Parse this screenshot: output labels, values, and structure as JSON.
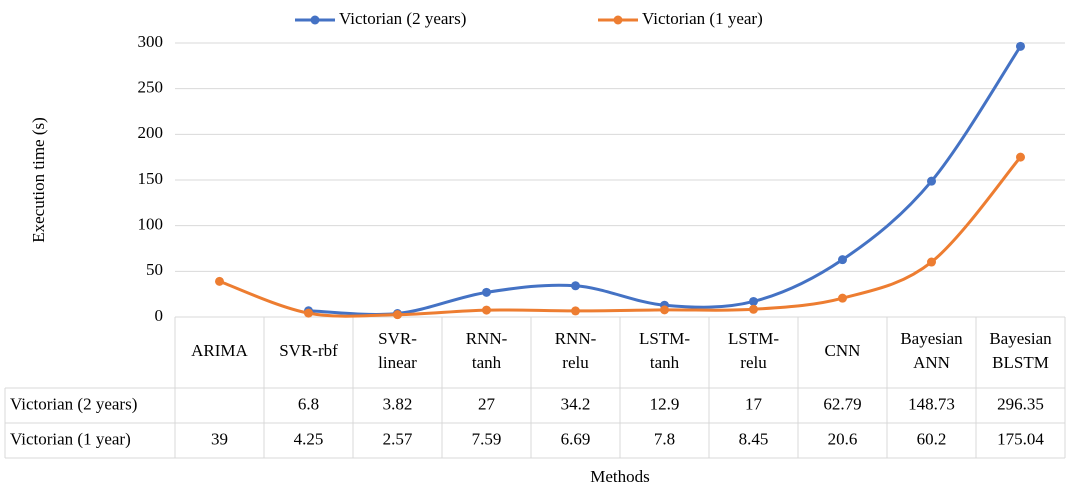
{
  "chart_data": {
    "type": "line",
    "categories": [
      "ARIMA",
      "SVR-rbf",
      "SVR-linear",
      "RNN-tanh",
      "RNN-relu",
      "LSTM-tanh",
      "LSTM-relu",
      "CNN",
      "Bayesian ANN",
      "Bayesian BLSTM"
    ],
    "series": [
      {
        "name": "Victorian (2 years)",
        "color": "#4472c4",
        "values": [
          null,
          6.8,
          3.82,
          27,
          34.2,
          12.9,
          17,
          62.79,
          148.73,
          296.35
        ]
      },
      {
        "name": "Victorian (1 year)",
        "color": "#ed7d31",
        "values": [
          39,
          4.25,
          2.57,
          7.59,
          6.69,
          7.8,
          8.45,
          20.6,
          60.2,
          175.04
        ]
      }
    ],
    "ylim": [
      0,
      300
    ],
    "yticks": [
      0,
      50,
      100,
      150,
      200,
      250,
      300
    ],
    "grid": true,
    "y_label": "Execution time (s)",
    "x_label": "Methods",
    "legend": "top"
  }
}
